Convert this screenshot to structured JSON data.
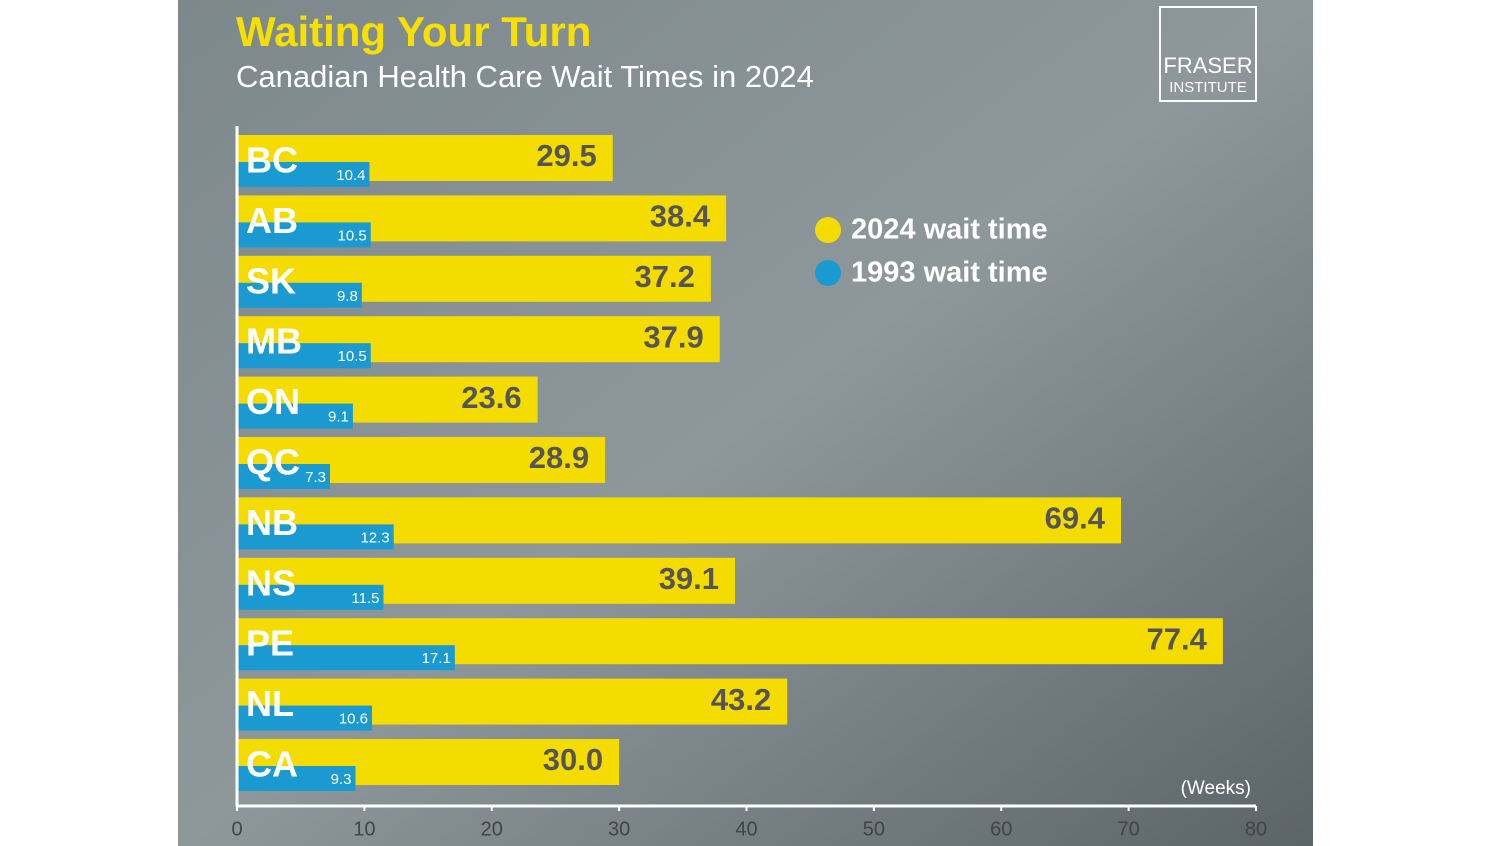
{
  "chart_data": {
    "type": "bar",
    "orientation": "horizontal",
    "title": "Waiting Your Turn",
    "subtitle": "Canadian Health Care Wait Times in 2024",
    "brand": [
      "FRASER",
      "INSTITUTE"
    ],
    "x_axis_label": "(Weeks)",
    "categories": [
      "BC",
      "AB",
      "SK",
      "MB",
      "ON",
      "QC",
      "NB",
      "NS",
      "PE",
      "NL",
      "CA"
    ],
    "series": [
      {
        "name": "2024 wait time",
        "color": "#f5dc00",
        "values": [
          29.5,
          38.4,
          37.2,
          37.9,
          23.6,
          28.9,
          69.4,
          39.1,
          77.4,
          43.2,
          30.0
        ],
        "value_labels": [
          "29.5",
          "38.4",
          "37.2",
          "37.9",
          "23.6",
          "28.9",
          "69.4",
          "39.1",
          "77.4",
          "43.2",
          "30.0"
        ]
      },
      {
        "name": "1993 wait time",
        "color": "#1a9ad0",
        "values": [
          10.4,
          10.5,
          9.8,
          10.5,
          9.1,
          7.3,
          12.3,
          11.5,
          17.1,
          10.6,
          9.3
        ]
      }
    ],
    "xlim": [
      0,
      80
    ],
    "xticks": [
      0,
      10,
      20,
      30,
      40,
      50,
      60,
      70,
      80
    ],
    "grid": false,
    "legend": "upper-right"
  }
}
